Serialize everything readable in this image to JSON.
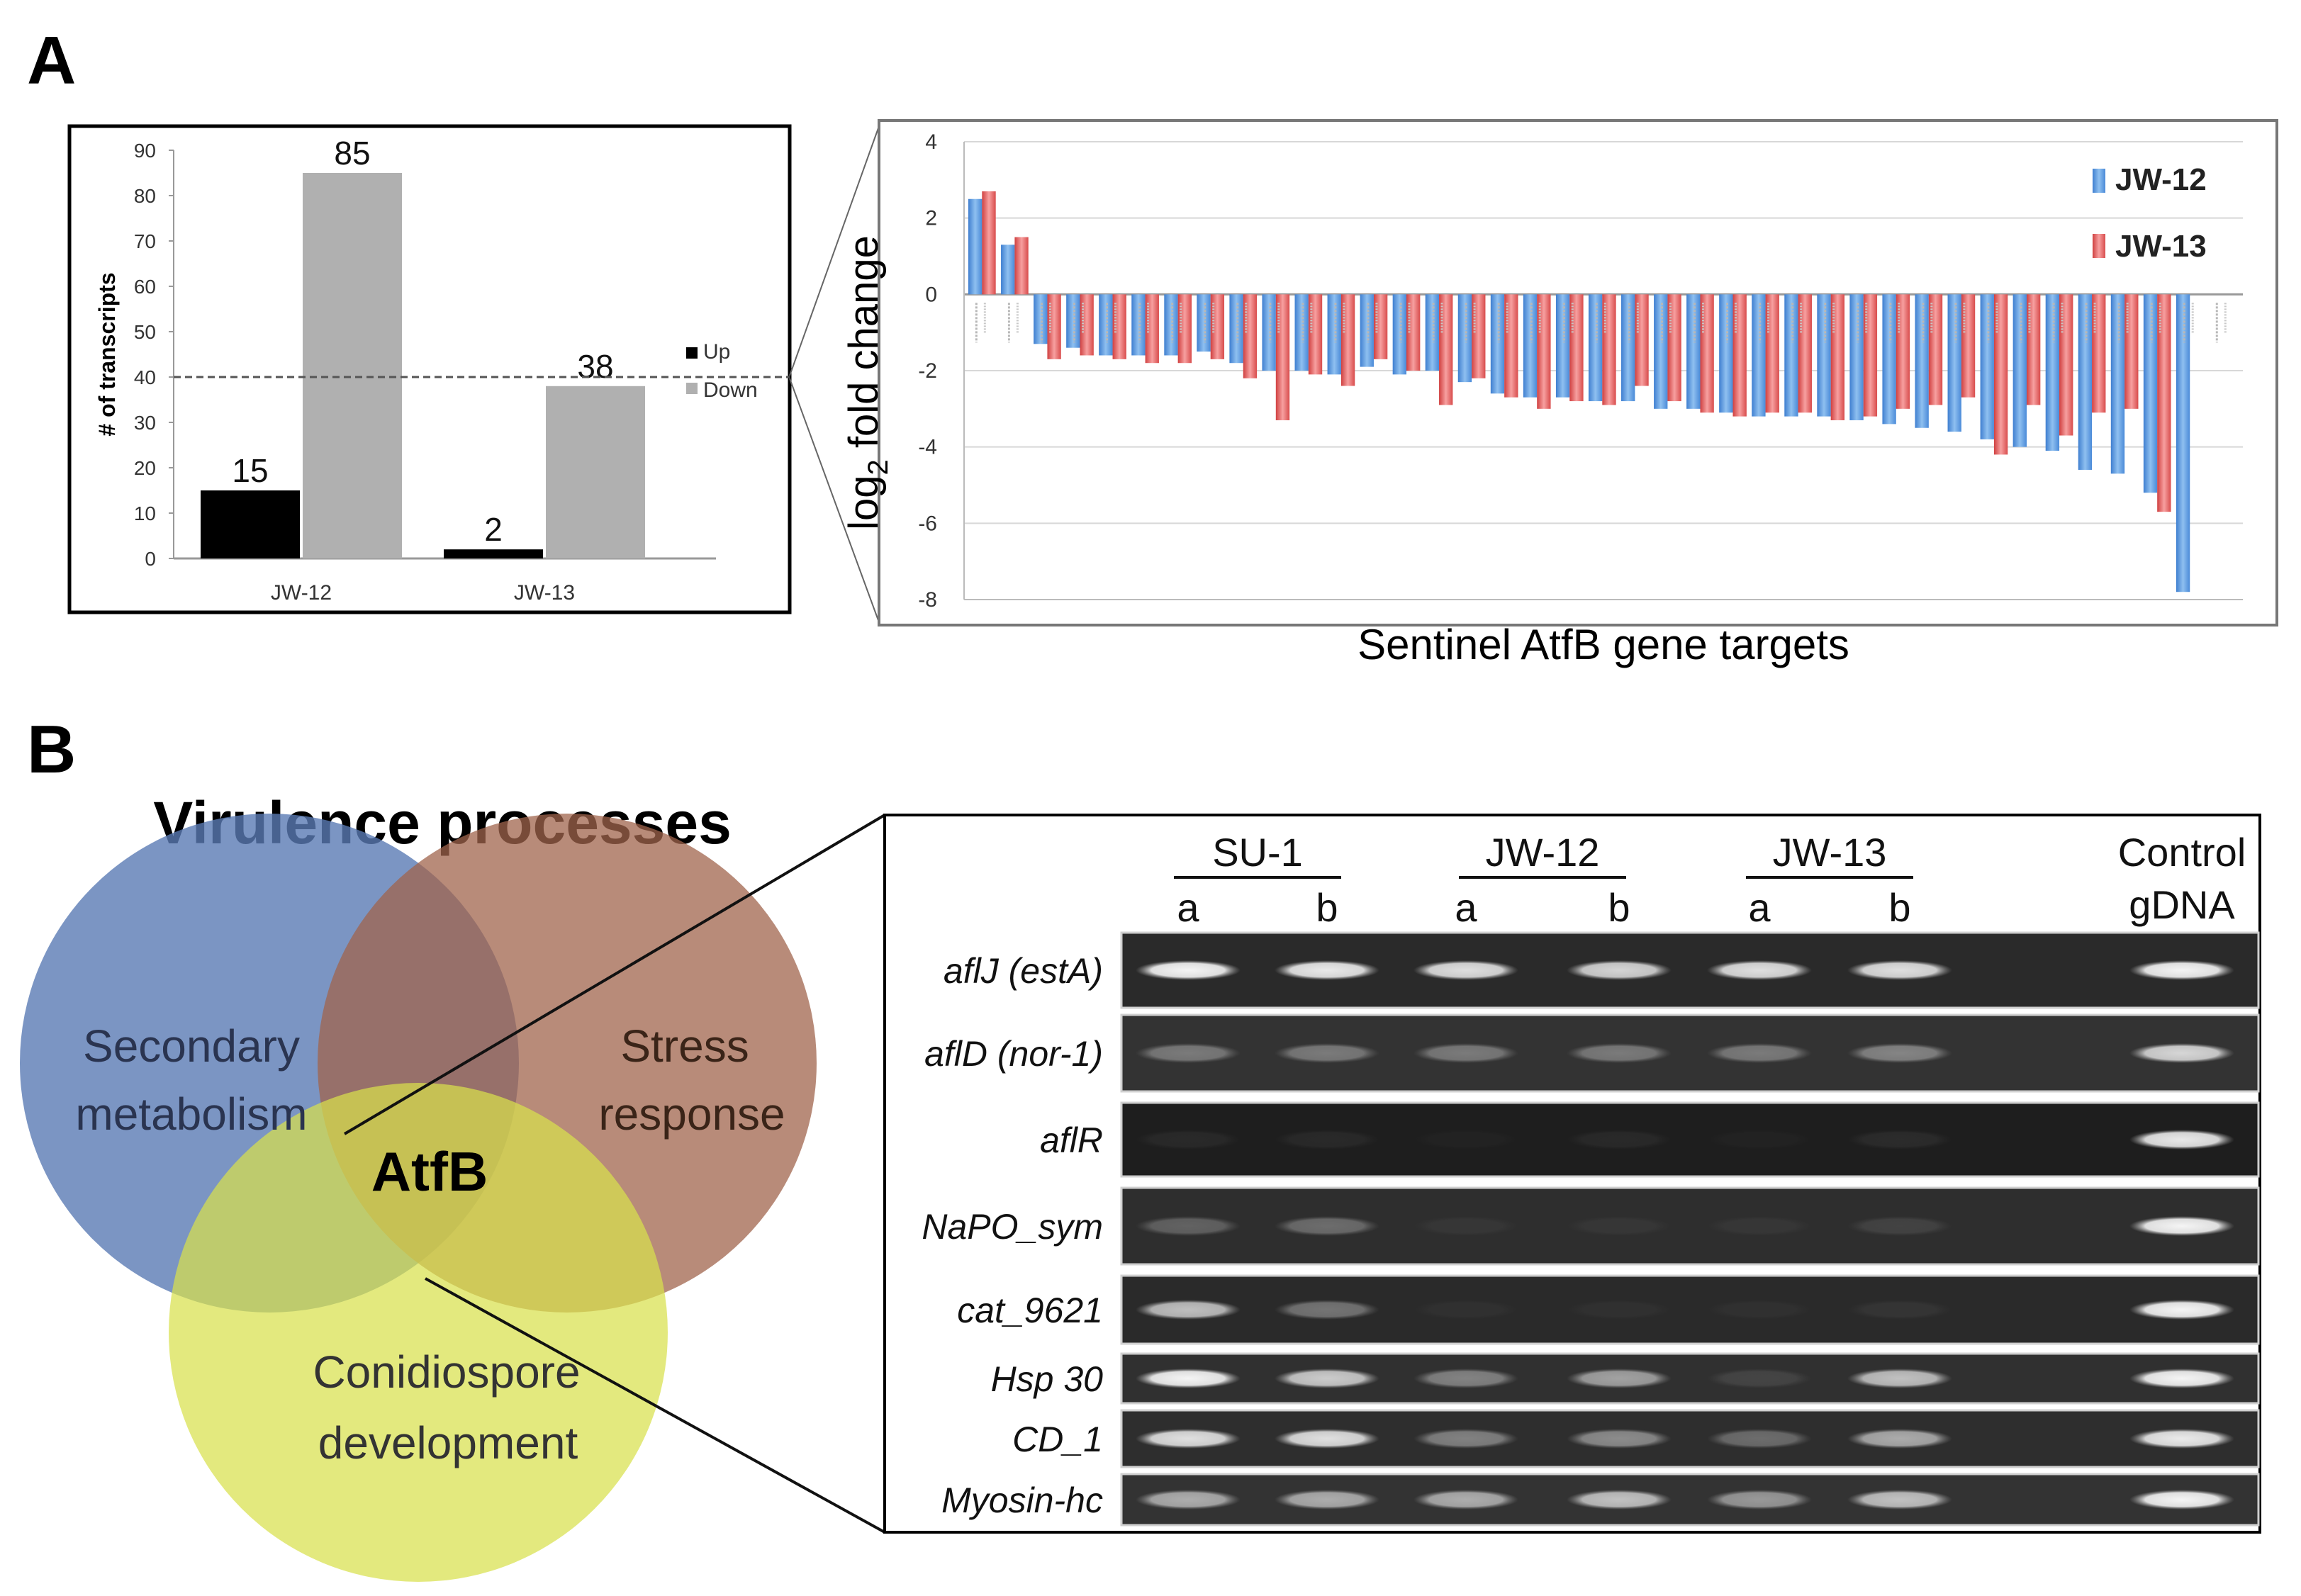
{
  "panel_a": {
    "label": "A",
    "left_chart": {
      "ylabel": "# of transcripts",
      "yticks": [
        "0",
        "10",
        "20",
        "30",
        "40",
        "50",
        "60",
        "70",
        "80",
        "90"
      ],
      "legend": [
        {
          "label": "Up",
          "color": "#000000"
        },
        {
          "label": "Down",
          "color": "#b0b0b0"
        }
      ]
    },
    "right_chart": {
      "ylabel_main": "log",
      "ylabel_sub": "2",
      "ylabel_rest": " fold change",
      "xlabel": "Sentinel AtfB gene targets",
      "yticks": [
        "4",
        "2",
        "0",
        "-2",
        "-4",
        "-6",
        "-8"
      ],
      "legend": [
        {
          "label": "JW-12",
          "color": "#5b9bd5"
        },
        {
          "label": "JW-13",
          "color": "#e05a5a"
        }
      ]
    }
  },
  "panel_b": {
    "label": "B",
    "venn": {
      "title": "Virulence processes",
      "secondary_1": "Secondary",
      "secondary_2": "metabolism",
      "stress_1": "Stress",
      "stress_2": "response",
      "conid_1": "Conidiospore",
      "conid_2": "development",
      "center": "AtfB"
    },
    "gel": {
      "groups": [
        "SU-1",
        "JW-12",
        "JW-13"
      ],
      "lane_a": "a",
      "lane_b": "b",
      "control_1": "Control",
      "control_2": "gDNA",
      "rows": [
        {
          "pre": "aflJ",
          "paren": " (estA)"
        },
        {
          "pre": "aflD",
          "paren": " (nor-1)"
        },
        {
          "pre": "aflR",
          "paren": ""
        },
        {
          "pre": "NaPO_sym",
          "paren": ""
        },
        {
          "pre": "cat_9621",
          "paren": ""
        },
        {
          "pre": "Hsp 30",
          "paren": ""
        },
        {
          "pre": "CD_1",
          "paren": ""
        },
        {
          "pre": "Myosin-hc",
          "paren": ""
        }
      ],
      "band_intensity": [
        [
          0.95,
          0.9,
          0.85,
          0.8,
          0.85,
          0.85,
          0,
          0.95
        ],
        [
          0.35,
          0.35,
          0.35,
          0.35,
          0.35,
          0.4,
          0,
          0.8
        ],
        [
          0.05,
          0.05,
          0.02,
          0.05,
          0.02,
          0.06,
          0,
          0.9
        ],
        [
          0.25,
          0.3,
          0.04,
          0.04,
          0.04,
          0.1,
          0,
          0.95
        ],
        [
          0.7,
          0.35,
          0.03,
          0.03,
          0.03,
          0.05,
          0,
          0.95
        ],
        [
          0.95,
          0.75,
          0.4,
          0.55,
          0.1,
          0.7,
          0,
          0.95
        ],
        [
          0.85,
          0.85,
          0.4,
          0.45,
          0.3,
          0.6,
          0,
          0.9
        ],
        [
          0.6,
          0.6,
          0.6,
          0.7,
          0.5,
          0.7,
          0,
          0.95
        ]
      ]
    }
  },
  "chart_data": [
    {
      "type": "bar",
      "title": "",
      "ylabel": "# of transcripts",
      "xlabel": "",
      "categories": [
        "JW-12",
        "JW-13"
      ],
      "series": [
        {
          "name": "Up",
          "values": [
            15,
            2
          ]
        },
        {
          "name": "Down",
          "values": [
            85,
            38
          ]
        }
      ],
      "data_labels": [
        "15",
        "85",
        "2",
        "38"
      ],
      "ylim": [
        0,
        90
      ],
      "reference_line": 40,
      "legend": "right"
    },
    {
      "type": "bar",
      "title": "",
      "ylabel": "log2 fold change",
      "xlabel": "Sentinel AtfB gene targets",
      "ylim": [
        -8,
        4
      ],
      "legend": "top-right",
      "series": [
        {
          "name": "JW-12",
          "values": [
            2.5,
            1.3,
            -1.3,
            -1.4,
            -1.6,
            -1.6,
            -1.6,
            -1.5,
            -1.8,
            -2.0,
            -2.0,
            -2.1,
            -1.9,
            -2.1,
            -2.0,
            -2.3,
            -2.6,
            -2.7,
            -2.7,
            -2.8,
            -2.8,
            -3.0,
            -3.0,
            -3.1,
            -3.2,
            -3.2,
            -3.2,
            -3.3,
            -3.4,
            -3.5,
            -3.6,
            -3.8,
            -4.0,
            -4.1,
            -4.6,
            -4.7,
            -5.2,
            -7.8,
            0
          ]
        },
        {
          "name": "JW-13",
          "values": [
            2.7,
            1.5,
            -1.7,
            -1.6,
            -1.7,
            -1.8,
            -1.8,
            -1.7,
            -2.2,
            -3.3,
            -2.1,
            -2.4,
            -1.7,
            -2.0,
            -2.9,
            -2.2,
            -2.7,
            -3.0,
            -2.8,
            -2.9,
            -2.4,
            -2.8,
            -3.1,
            -3.2,
            -3.1,
            -3.1,
            -3.3,
            -3.2,
            -3.0,
            -2.9,
            -2.7,
            -4.2,
            -2.9,
            -3.7,
            -3.1,
            -3.0,
            -5.7,
            0,
            0
          ]
        }
      ]
    }
  ]
}
